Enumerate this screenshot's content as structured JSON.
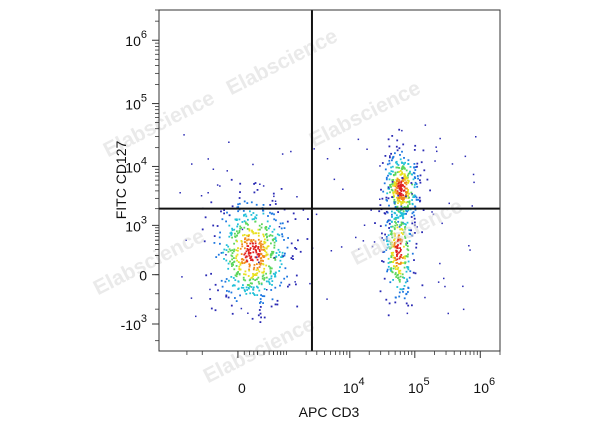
{
  "chart_data": {
    "type": "scatter",
    "subtype": "flow-cytometry-pseudocolor-density",
    "title": "",
    "xlabel": "APC CD3",
    "ylabel": "FITC CD127",
    "x_scale": "biexponential (logicle)",
    "y_scale": "biexponential (logicle)",
    "x_ticks": [
      {
        "value": 0,
        "base": "0",
        "exp": ""
      },
      {
        "value": 10000,
        "base": "10",
        "exp": "4"
      },
      {
        "value": 100000,
        "base": "10",
        "exp": "5"
      },
      {
        "value": 1000000,
        "base": "10",
        "exp": "6"
      }
    ],
    "y_ticks": [
      {
        "value": -1000,
        "base": "-10",
        "exp": "3"
      },
      {
        "value": 0,
        "base": "0",
        "exp": ""
      },
      {
        "value": 1000,
        "base": "10",
        "exp": "3"
      },
      {
        "value": 10000,
        "base": "10",
        "exp": "4"
      },
      {
        "value": 100000,
        "base": "10",
        "exp": "5"
      },
      {
        "value": 1000000,
        "base": "10",
        "exp": "6"
      }
    ],
    "quadrant_gates": {
      "x": 2500,
      "y": 2000
    },
    "populations": [
      {
        "x_center": 120,
        "y_center": 250,
        "relative_size": 0.44
      },
      {
        "x_center": 60000,
        "y_center": 4500,
        "relative_size": 0.3
      },
      {
        "x_center": 55000,
        "y_center": 300,
        "relative_size": 0.22
      }
    ],
    "density_colors": [
      "#2a2ab4",
      "#1f78e0",
      "#22c0d8",
      "#5cd65c",
      "#e8e020",
      "#f28a1c",
      "#e02020"
    ],
    "grid": false,
    "legend": "none"
  },
  "watermark": "Elabscience"
}
